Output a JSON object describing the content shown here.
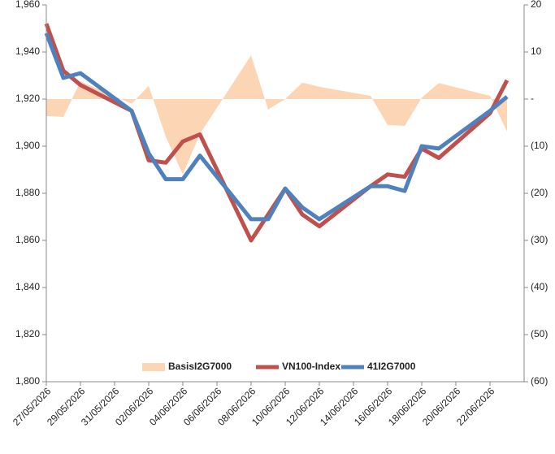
{
  "chart_data": {
    "type": "line",
    "x": [
      "27/05/2026",
      "28/05/2026",
      "29/05/2026",
      "01/06/2026",
      "02/06/2026",
      "03/06/2026",
      "04/06/2026",
      "05/06/2026",
      "08/06/2026",
      "09/06/2026",
      "10/06/2026",
      "11/06/2026",
      "12/06/2026",
      "15/06/2026",
      "16/06/2026",
      "17/06/2026",
      "18/06/2026",
      "19/06/2026",
      "22/06/2026",
      "23/06/2026"
    ],
    "xlim": [
      "27/05/2026",
      "24/06/2026"
    ],
    "xticks": [
      "27/05/2026",
      "29/05/2026",
      "31/05/2026",
      "02/06/2026",
      "04/06/2026",
      "06/06/2026",
      "08/06/2026",
      "10/06/2026",
      "12/06/2026",
      "14/06/2026",
      "16/06/2026",
      "18/06/2026",
      "20/06/2026",
      "22/06/2026"
    ],
    "ylim": [
      1800,
      1960
    ],
    "yticks": [
      {
        "value": 1800,
        "label": "1,800"
      },
      {
        "value": 1820,
        "label": "1,820"
      },
      {
        "value": 1840,
        "label": "1,840"
      },
      {
        "value": 1860,
        "label": "1,860"
      },
      {
        "value": 1880,
        "label": "1,880"
      },
      {
        "value": 1900,
        "label": "1,900"
      },
      {
        "value": 1920,
        "label": "1,920"
      },
      {
        "value": 1940,
        "label": "1,940"
      },
      {
        "value": 1960,
        "label": "1,960"
      }
    ],
    "y2lim": [
      -60,
      20
    ],
    "y2ticks": [
      {
        "value": -60,
        "label": "(60)"
      },
      {
        "value": -50,
        "label": "(50)"
      },
      {
        "value": -40,
        "label": "(40)"
      },
      {
        "value": -30,
        "label": "(30)"
      },
      {
        "value": -20,
        "label": "(20)"
      },
      {
        "value": -10,
        "label": "(10)"
      },
      {
        "value": 0,
        "label": "-"
      },
      10,
      20
    ],
    "legend": "lower center",
    "series": [
      {
        "name": "BasisI2G7000",
        "type": "area",
        "axis": "y2",
        "color": "#fcd5b4",
        "values": [
          -3.6,
          -3.8,
          3.8,
          -1,
          2.8,
          -8,
          -16,
          -7.4,
          9.3,
          -2.2,
          0,
          3.5,
          2.6,
          0.7,
          -5.5,
          -5.7,
          0.3,
          3.4,
          0.7,
          -6.9
        ]
      },
      {
        "name": "VN100-Index",
        "type": "line",
        "color": "#c0504d",
        "values": [
          1952,
          1932,
          1926,
          1915,
          1894,
          1893,
          1902,
          1905,
          1860,
          1871,
          1882,
          1871,
          1866,
          1883,
          1888,
          1887,
          1899,
          1895,
          1914,
          1928
        ]
      },
      {
        "name": "41I2G7000",
        "type": "line",
        "color": "#4f81bd",
        "values": [
          1948,
          1929,
          1931,
          1915,
          1897,
          1886,
          1886,
          1896,
          1869,
          1869,
          1882,
          1874,
          1869,
          1883,
          1883,
          1881,
          1900,
          1899,
          1915,
          1921
        ]
      }
    ]
  }
}
